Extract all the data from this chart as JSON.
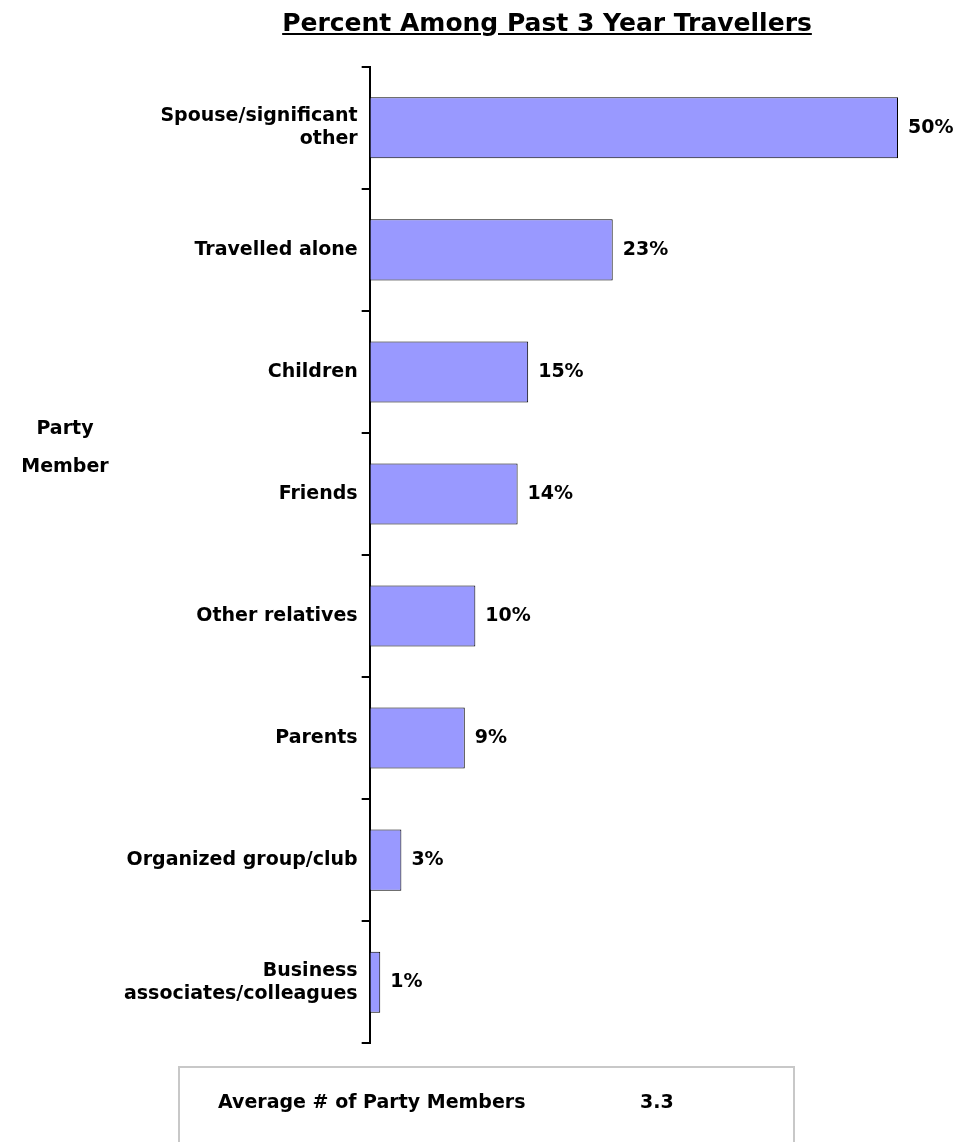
{
  "chart_data": {
    "type": "bar",
    "orientation": "horizontal",
    "title": "Percent Among Past 3 Year Travellers",
    "ylabel": "Party Member",
    "categories": [
      "Spouse/significant other",
      "Travelled alone",
      "Children",
      "Friends",
      "Other relatives",
      "Parents",
      "Organized group/club",
      "Business associates/colleagues"
    ],
    "values": [
      50,
      23,
      15,
      14,
      10,
      9,
      3,
      1
    ],
    "value_labels": [
      "50%",
      "23%",
      "15%",
      "14%",
      "10%",
      "9%",
      "3%",
      "1%"
    ],
    "color": "#9999ff",
    "annotations": [
      "Average # of Party Members",
      "3.3"
    ]
  }
}
